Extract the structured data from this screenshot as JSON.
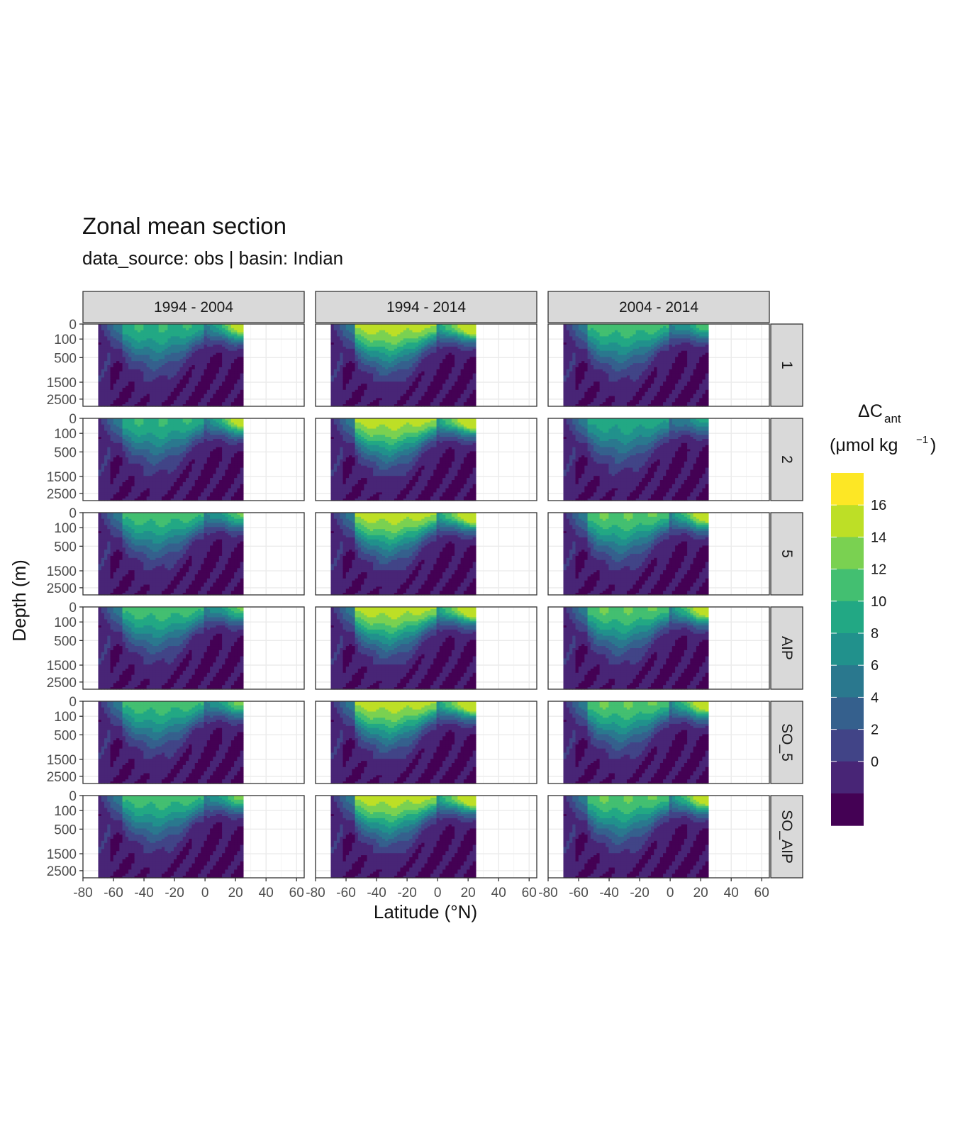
{
  "chart_data": {
    "type": "heatmap",
    "title": "Zonal mean section",
    "subtitle": "data_source:  obs | basin: Indian",
    "xlabel": "Latitude (°N)",
    "ylabel": "Depth (m)",
    "xlim": [
      -80,
      65
    ],
    "x_ticks": [
      -80,
      -60,
      -40,
      -20,
      0,
      20,
      40,
      60
    ],
    "y_ticks": [
      0,
      100,
      500,
      1500,
      2500
    ],
    "y_scale": "sqrt (reversed)",
    "ylim": [
      0,
      3000
    ],
    "data_lat_range": [
      -70,
      25
    ],
    "columns": [
      "1994 - 2004",
      "1994 - 2014",
      "2004 - 2014"
    ],
    "rows": [
      "1",
      "2",
      "5",
      "AIP",
      "SO_5",
      "SO_AIP"
    ],
    "legend": {
      "title_main": "ΔC",
      "title_sub": "ant",
      "title_units_pre": "(μmol kg",
      "title_units_sup": "−1",
      "title_units_post": ")",
      "placement": "right",
      "labels": [
        "16",
        "14",
        "12",
        "10",
        "8",
        "6",
        "4",
        "2",
        "0"
      ],
      "breaks": [
        0,
        2,
        4,
        6,
        8,
        10,
        12,
        14,
        16
      ],
      "colors": [
        "#440154",
        "#482576",
        "#414487",
        "#35608d",
        "#2a788e",
        "#21918c",
        "#22a884",
        "#43bf71",
        "#7ad151",
        "#bddf26",
        "#fde725"
      ]
    },
    "panels": [
      {
        "col": "1994 - 2004",
        "row": "1",
        "surface_max": 12,
        "trop_surface": 16
      },
      {
        "col": "1994 - 2014",
        "row": "1",
        "surface_max": 17,
        "trop_surface": 17
      },
      {
        "col": "2004 - 2014",
        "row": "1",
        "surface_max": 13,
        "trop_surface": 8
      },
      {
        "col": "1994 - 2004",
        "row": "2",
        "surface_max": 12,
        "trop_surface": 16
      },
      {
        "col": "1994 - 2014",
        "row": "2",
        "surface_max": 17,
        "trop_surface": 17
      },
      {
        "col": "2004 - 2014",
        "row": "2",
        "surface_max": 11,
        "trop_surface": 6
      },
      {
        "col": "1994 - 2004",
        "row": "5",
        "surface_max": 13,
        "trop_surface": 9
      },
      {
        "col": "1994 - 2014",
        "row": "5",
        "surface_max": 17,
        "trop_surface": 17
      },
      {
        "col": "2004 - 2014",
        "row": "5",
        "surface_max": 14,
        "trop_surface": 17
      },
      {
        "col": "1994 - 2004",
        "row": "AIP",
        "surface_max": 13,
        "trop_surface": 9
      },
      {
        "col": "1994 - 2014",
        "row": "AIP",
        "surface_max": 17,
        "trop_surface": 17
      },
      {
        "col": "2004 - 2014",
        "row": "AIP",
        "surface_max": 14,
        "trop_surface": 17
      },
      {
        "col": "1994 - 2004",
        "row": "SO_5",
        "surface_max": 13,
        "trop_surface": 10
      },
      {
        "col": "1994 - 2014",
        "row": "SO_5",
        "surface_max": 17,
        "trop_surface": 17
      },
      {
        "col": "2004 - 2014",
        "row": "SO_5",
        "surface_max": 14,
        "trop_surface": 17
      },
      {
        "col": "1994 - 2004",
        "row": "SO_AIP",
        "surface_max": 13,
        "trop_surface": 10
      },
      {
        "col": "1994 - 2014",
        "row": "SO_AIP",
        "surface_max": 17,
        "trop_surface": 17
      },
      {
        "col": "2004 - 2014",
        "row": "SO_AIP",
        "surface_max": 14,
        "trop_surface": 17
      }
    ]
  }
}
